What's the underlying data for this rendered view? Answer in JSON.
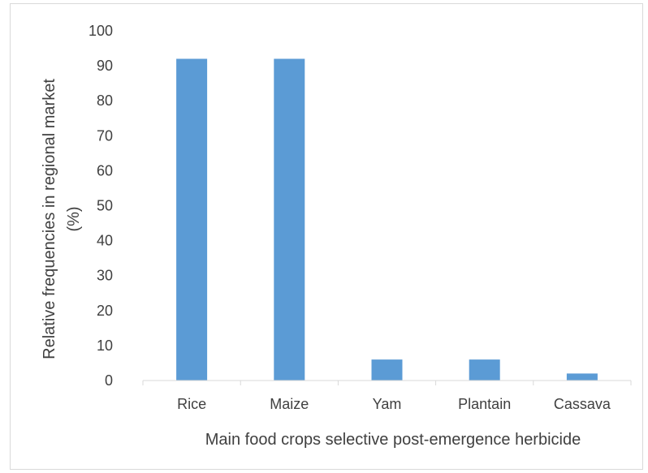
{
  "chart_data": {
    "type": "bar",
    "categories": [
      "Rice",
      "Maize",
      "Yam",
      "Plantain",
      "Cassava"
    ],
    "values": [
      92,
      92,
      6,
      6,
      2
    ],
    "xlabel": "Main food crops selective post-emergence herbicide",
    "ylabel_line1": "Relative frequencies in regional market",
    "ylabel_line2": "(%)",
    "ylim": [
      0,
      100
    ],
    "yticks": [
      0,
      10,
      20,
      30,
      40,
      50,
      60,
      70,
      80,
      90,
      100
    ],
    "grid": false,
    "bar_color": "#5b9bd5",
    "axis_color": "#d9d9d9",
    "text_color": "#404040"
  }
}
